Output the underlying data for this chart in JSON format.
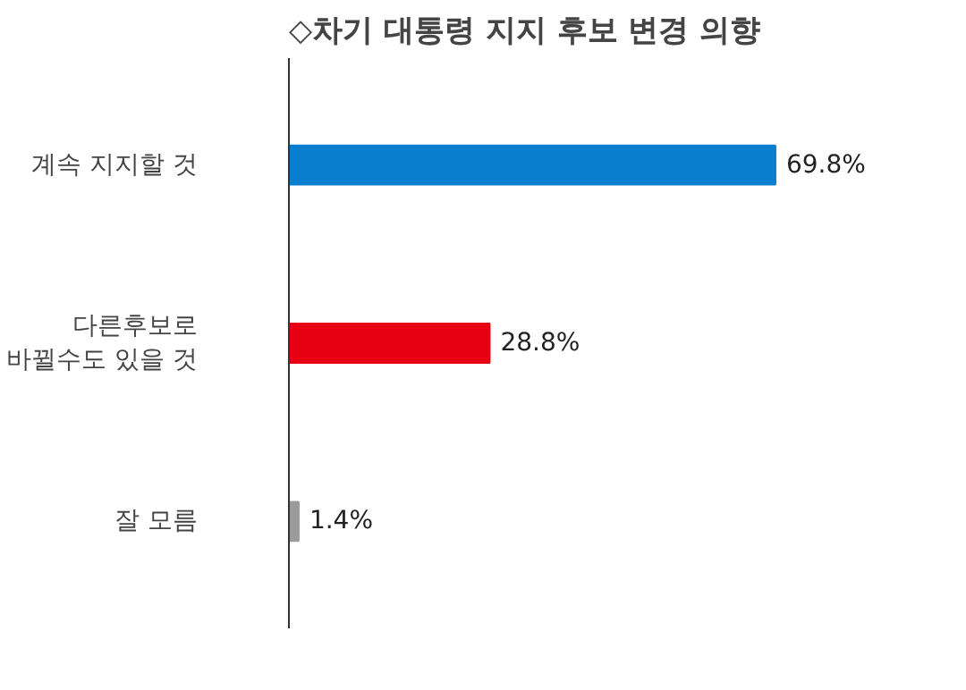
{
  "chart_data": {
    "type": "bar",
    "orientation": "horizontal",
    "title": "◇차기 대통령 지지 후보 변경 의향",
    "categories": [
      "계속 지지할 것",
      "다른후보로\n바뀔수도 있을 것",
      "잘 모름"
    ],
    "values": [
      69.8,
      28.8,
      1.4
    ],
    "colors": [
      "#0a7fd0",
      "#e60012",
      "#9a9a9a"
    ],
    "value_labels": [
      "69.8%",
      "28.8%",
      "1.4%"
    ],
    "grid": false
  }
}
